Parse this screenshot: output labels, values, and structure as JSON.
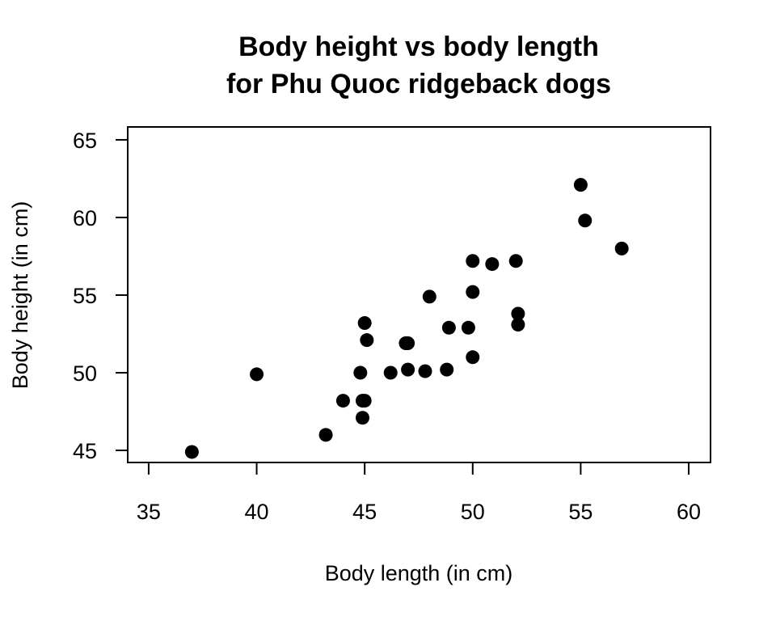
{
  "chart_data": {
    "type": "scatter",
    "title": [
      "Body height vs body length",
      "for Phu Quoc ridgeback dogs"
    ],
    "x_label": "Body length (in cm)",
    "y_label": "Body height (in cm)",
    "x": [
      37.0,
      40.0,
      43.2,
      44.0,
      44.9,
      45.0,
      44.9,
      44.8,
      45.0,
      45.1,
      46.2,
      46.9,
      47.0,
      47.0,
      47.8,
      48.0,
      48.8,
      48.9,
      49.8,
      50.0,
      50.0,
      50.0,
      50.9,
      52.0,
      52.1,
      52.1,
      55.0,
      55.2,
      56.9
    ],
    "y": [
      44.9,
      49.9,
      46.0,
      48.2,
      48.2,
      48.2,
      47.1,
      50.0,
      53.2,
      52.1,
      50.0,
      51.9,
      51.9,
      50.2,
      50.1,
      54.9,
      50.2,
      52.9,
      52.9,
      51.0,
      57.2,
      55.2,
      57.0,
      57.2,
      53.8,
      53.1,
      62.1,
      59.8,
      58.0
    ],
    "color": "#000000",
    "xlim": [
      34.03,
      61.01
    ],
    "ylim": [
      44.22,
      65.83
    ],
    "xticks": [
      35,
      40,
      45,
      50,
      55,
      60
    ],
    "yticks": [
      45,
      50,
      55,
      60,
      65
    ]
  }
}
